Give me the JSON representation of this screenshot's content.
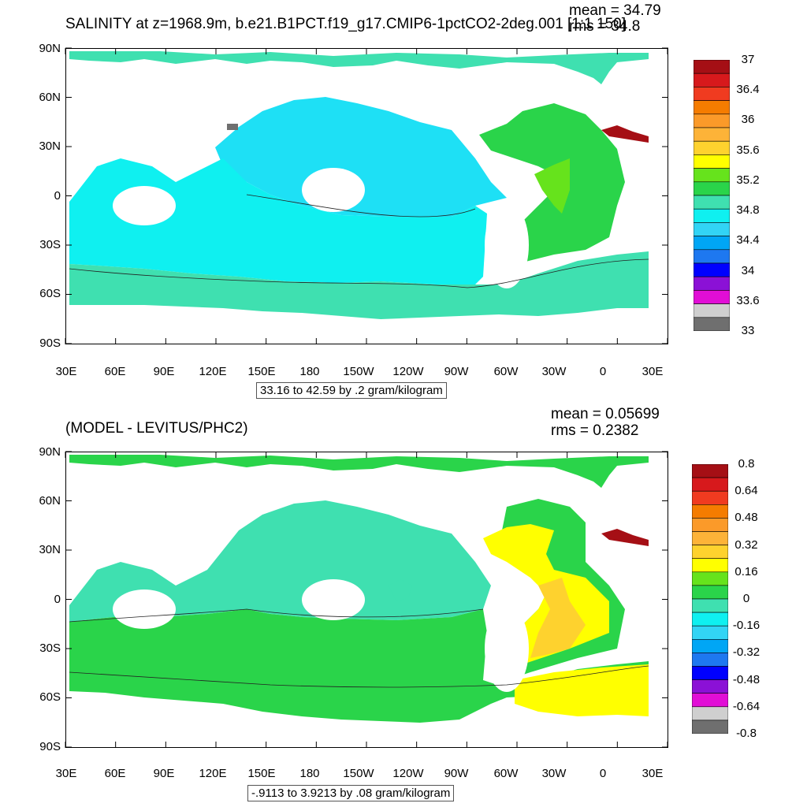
{
  "panel_top": {
    "title": "SALINITY at z=1968.9m, b.e21.B1PCT.f19_g17.CMIP6-1pctCO2-2deg.001 [1:1 150]",
    "mean": "mean = 34.79",
    "rms": "rms = 34.8",
    "range_text": "33.16 to 42.59 by .2 gram/kilogram",
    "colorbar_labels": [
      "37",
      "36.4",
      "36",
      "35.6",
      "35.2",
      "34.8",
      "34.4",
      "34",
      "33.6",
      "33"
    ],
    "colorbar_colors": [
      "#a50f15",
      "#d7191c",
      "#f03b20",
      "#f57c00",
      "#fb9a29",
      "#fdb338",
      "#fed22e",
      "#ffff00",
      "#66e31c",
      "#2ad44a",
      "#3fe0b0",
      "#0ff0f0",
      "#32d4f5",
      "#00a6f5",
      "#1e78f0",
      "#0000ff",
      "#8b11d6",
      "#e10ed6",
      "#cfcfcf",
      "#6f6f6f"
    ]
  },
  "panel_bottom": {
    "title": "(MODEL - LEVITUS/PHC2)",
    "mean": "mean = 0.05699",
    "rms": "rms = 0.2382",
    "range_text": "-.9113 to 3.9213 by .08 gram/kilogram",
    "colorbar_labels": [
      "0.8",
      "0.64",
      "0.48",
      "0.32",
      "0.16",
      "0",
      "-0.16",
      "-0.32",
      "-0.48",
      "-0.64",
      "-0.8"
    ],
    "colorbar_colors": [
      "#a50f15",
      "#d7191c",
      "#f03b20",
      "#f57c00",
      "#fb9a29",
      "#fdb338",
      "#fed22e",
      "#ffff00",
      "#66e31c",
      "#2ad44a",
      "#3fe0b0",
      "#0ff0f0",
      "#32d4f5",
      "#00a6f5",
      "#1e78f0",
      "#0000ff",
      "#8b11d6",
      "#e10ed6",
      "#cfcfcf",
      "#6f6f6f"
    ]
  },
  "axes": {
    "lat_labels": [
      "90N",
      "60N",
      "30N",
      "0",
      "30S",
      "60S",
      "90S"
    ],
    "lon_labels": [
      "30E",
      "60E",
      "90E",
      "120E",
      "150E",
      "180",
      "150W",
      "120W",
      "90W",
      "60W",
      "30W",
      "0",
      "30E"
    ]
  },
  "colors": {
    "top_pacific": "#1ee0f5",
    "top_indian": "#0ff0f0",
    "top_southern": "#3fe0b0",
    "top_atlantic": "#2ad44a",
    "top_atlantic_core": "#66e31c",
    "bottom_north": "#3fe0b0",
    "bottom_south": "#2ad44a",
    "bottom_atlantic_yellow": "#ffff00",
    "bottom_atlantic_orange": "#fed22e",
    "dark_red": "#a50f15",
    "gray": "#6f6f6f"
  }
}
